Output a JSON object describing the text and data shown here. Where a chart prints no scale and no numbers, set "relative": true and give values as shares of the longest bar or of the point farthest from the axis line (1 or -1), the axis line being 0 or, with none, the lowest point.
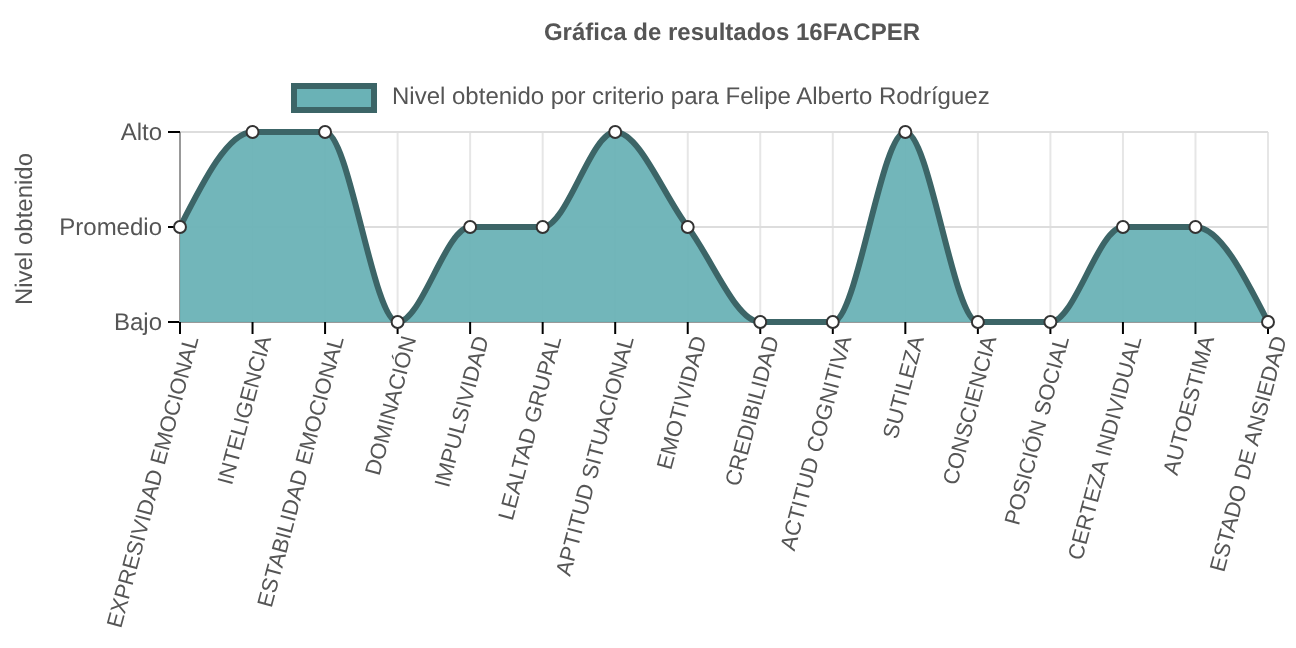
{
  "chart_data": {
    "type": "area",
    "title": "Gráfica de resultados 16FACPER",
    "ylabel": "Nivel obtenido",
    "categories": [
      "EXPRESIVIDAD EMOCIONAL",
      "INTELIGENCIA",
      "ESTABILIDAD EMOCIONAL",
      "DOMINACIÓN",
      "IMPULSIVIDAD",
      "LEALTAD GRUPAL",
      "APTITUD SITUACIONAL",
      "EMOTIVIDAD",
      "CREDIBILIDAD",
      "ACTITUD COGNITIVA",
      "SUTILEZA",
      "CONSCIENCIA",
      "POSICIÓN SOCIAL",
      "CERTEZA INDIVIDUAL",
      "AUTOESTIMA",
      "ESTADO DE ANSIEDAD"
    ],
    "series": [
      {
        "name": "Nivel obtenido por criterio para Felipe Alberto Rodríguez",
        "color": "#6ab2b6",
        "values": [
          0.5,
          1,
          1,
          0,
          0.5,
          0.5,
          1,
          0.5,
          0,
          0,
          1,
          0,
          0,
          0.5,
          0.5,
          0
        ]
      }
    ],
    "relative": true,
    "annotations": [
      "Alto",
      "Promedio",
      "Bajo"
    ],
    "ref_lines": [
      {
        "axis": "y",
        "value": 1,
        "color": "#dddddd"
      },
      {
        "axis": "y",
        "value": 0.5,
        "color": "#dddddd"
      }
    ],
    "grid": "x",
    "legend": "top",
    "marker": "circle",
    "line_style": "solid"
  }
}
